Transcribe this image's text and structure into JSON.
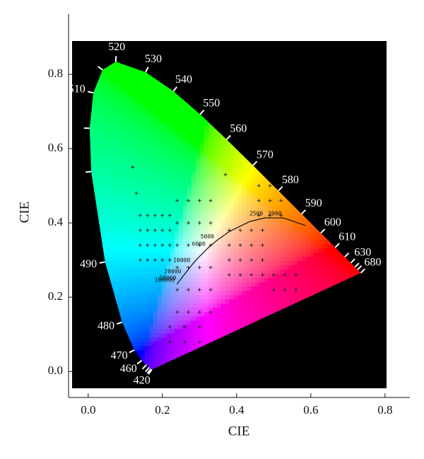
{
  "chart_data": {
    "type": "scatter",
    "x_label": "CIE",
    "y_label": "CIE",
    "xlim": [
      -0.053,
      0.867
    ],
    "ylim": [
      -0.07,
      0.962
    ],
    "xticks": [
      {
        "value": 0,
        "label": "0.0"
      },
      0.2,
      0.4,
      0.6,
      0.8
    ],
    "yticks": [
      {
        "value": 0,
        "label": "0.0"
      },
      0.2,
      0.4,
      0.6,
      0.8
    ],
    "spectral_locus": {
      "wavelength": [
        420,
        null,
        null,
        null,
        460,
        470,
        480,
        490,
        null,
        null,
        510,
        null,
        520,
        530,
        540,
        550,
        560,
        570,
        580,
        590,
        600,
        610,
        null,
        630,
        null,
        null,
        680
      ],
      "x": [
        0.1714,
        0.1689,
        0.1644,
        0.1566,
        0.144,
        0.1241,
        0.0913,
        0.0454,
        0.0082,
        0.0039,
        0.0139,
        0.0389,
        0.0743,
        0.1547,
        0.2296,
        0.3016,
        0.3731,
        0.4441,
        0.5125,
        0.5752,
        0.627,
        0.6658,
        0.6915,
        0.7079,
        0.719,
        0.726,
        0.7347
      ],
      "y": [
        0.0051,
        0.0069,
        0.0109,
        0.0177,
        0.0297,
        0.0578,
        0.1327,
        0.295,
        0.5384,
        0.6548,
        0.7502,
        0.812,
        0.8338,
        0.8059,
        0.7543,
        0.6923,
        0.6245,
        0.5547,
        0.4866,
        0.4242,
        0.3725,
        0.334,
        0.3083,
        0.292,
        0.2809,
        0.274,
        0.2653
      ]
    },
    "planckian_locus": {
      "temperature": [
        null,
        2000,
        2500,
        null,
        null,
        5000,
        6000,
        null,
        10000,
        20000,
        50000,
        100000
      ],
      "x": [
        0.5857,
        0.5267,
        0.477,
        0.4369,
        0.3805,
        0.3451,
        0.3221,
        0.2952,
        0.2807,
        0.2565,
        0.2432,
        0.2394
      ],
      "y": [
        0.3931,
        0.4133,
        0.4137,
        0.4041,
        0.3768,
        0.3516,
        0.3318,
        0.3048,
        0.2884,
        0.2577,
        0.2401,
        0.2346
      ]
    },
    "series": [
      {
        "color": "#222222",
        "x": [
          0.14,
          0.16,
          0.18,
          0.2,
          0.22,
          0.14,
          0.16,
          0.18,
          0.2,
          0.22,
          0.14,
          0.16,
          0.18,
          0.2,
          0.22,
          0.14,
          0.16,
          0.18,
          0.2,
          0.22,
          0.24,
          0.27,
          0.3,
          0.33,
          0.24,
          0.27,
          0.3,
          0.33,
          0.24,
          0.27,
          0.3,
          0.33,
          0.24,
          0.27,
          0.3,
          0.33,
          0.24,
          0.27,
          0.3,
          0.33,
          0.24,
          0.27,
          0.3,
          0.33,
          0.38,
          0.41,
          0.44,
          0.47,
          0.38,
          0.41,
          0.44,
          0.47,
          0.38,
          0.41,
          0.44,
          0.47,
          0.38,
          0.41,
          0.44,
          0.47,
          0.46,
          0.49,
          0.52,
          0.46,
          0.49,
          0.52,
          0.46,
          0.49,
          0.52,
          0.5,
          0.53,
          0.56,
          0.5,
          0.53,
          0.56,
          0.22,
          0.26,
          0.3,
          0.22,
          0.26,
          0.3,
          0.12,
          0.13,
          0.37
        ],
        "values": [
          0.3,
          0.3,
          0.3,
          0.3,
          0.3,
          0.34,
          0.34,
          0.34,
          0.34,
          0.34,
          0.38,
          0.38,
          0.38,
          0.38,
          0.38,
          0.42,
          0.42,
          0.42,
          0.42,
          0.42,
          0.16,
          0.16,
          0.16,
          0.16,
          0.22,
          0.22,
          0.22,
          0.22,
          0.28,
          0.28,
          0.28,
          0.28,
          0.34,
          0.34,
          0.34,
          0.34,
          0.4,
          0.4,
          0.4,
          0.4,
          0.46,
          0.46,
          0.46,
          0.46,
          0.26,
          0.26,
          0.26,
          0.26,
          0.3,
          0.3,
          0.3,
          0.3,
          0.34,
          0.34,
          0.34,
          0.34,
          0.38,
          0.38,
          0.38,
          0.38,
          0.42,
          0.42,
          0.42,
          0.46,
          0.46,
          0.46,
          0.5,
          0.5,
          0.5,
          0.22,
          0.22,
          0.22,
          0.26,
          0.26,
          0.26,
          0.08,
          0.08,
          0.08,
          0.12,
          0.12,
          0.12,
          0.55,
          0.48,
          0.53
        ]
      }
    ]
  }
}
